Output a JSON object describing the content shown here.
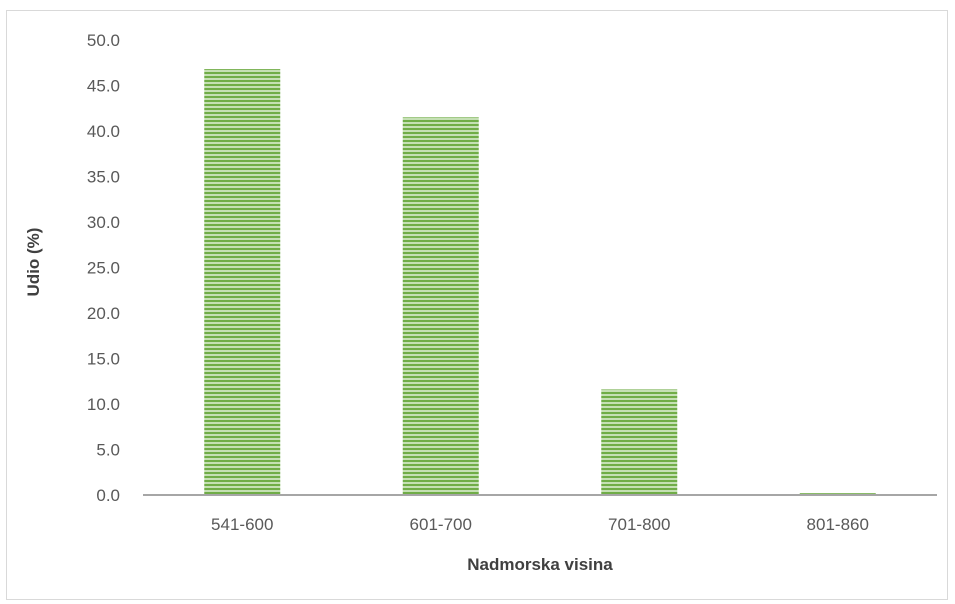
{
  "chart_data": {
    "type": "bar",
    "title": "",
    "xlabel": "Nadmorska visina",
    "ylabel": "Udio (%)",
    "categories": [
      "541-600",
      "601-700",
      "701-800",
      "801-860"
    ],
    "values": [
      46.8,
      41.5,
      11.6,
      0.2
    ],
    "ylim": [
      0,
      50
    ],
    "yticks": [
      "0.0",
      "5.0",
      "10.0",
      "15.0",
      "20.0",
      "25.0",
      "30.0",
      "35.0",
      "40.0",
      "45.0",
      "50.0"
    ],
    "grid": false,
    "legend": "none",
    "colors": {
      "bar": "#70ad47",
      "bar_stripe_light": "#c5e0b4",
      "axis": "#a6a6a6",
      "tick_text": "#595959",
      "title_text": "#404040"
    }
  }
}
